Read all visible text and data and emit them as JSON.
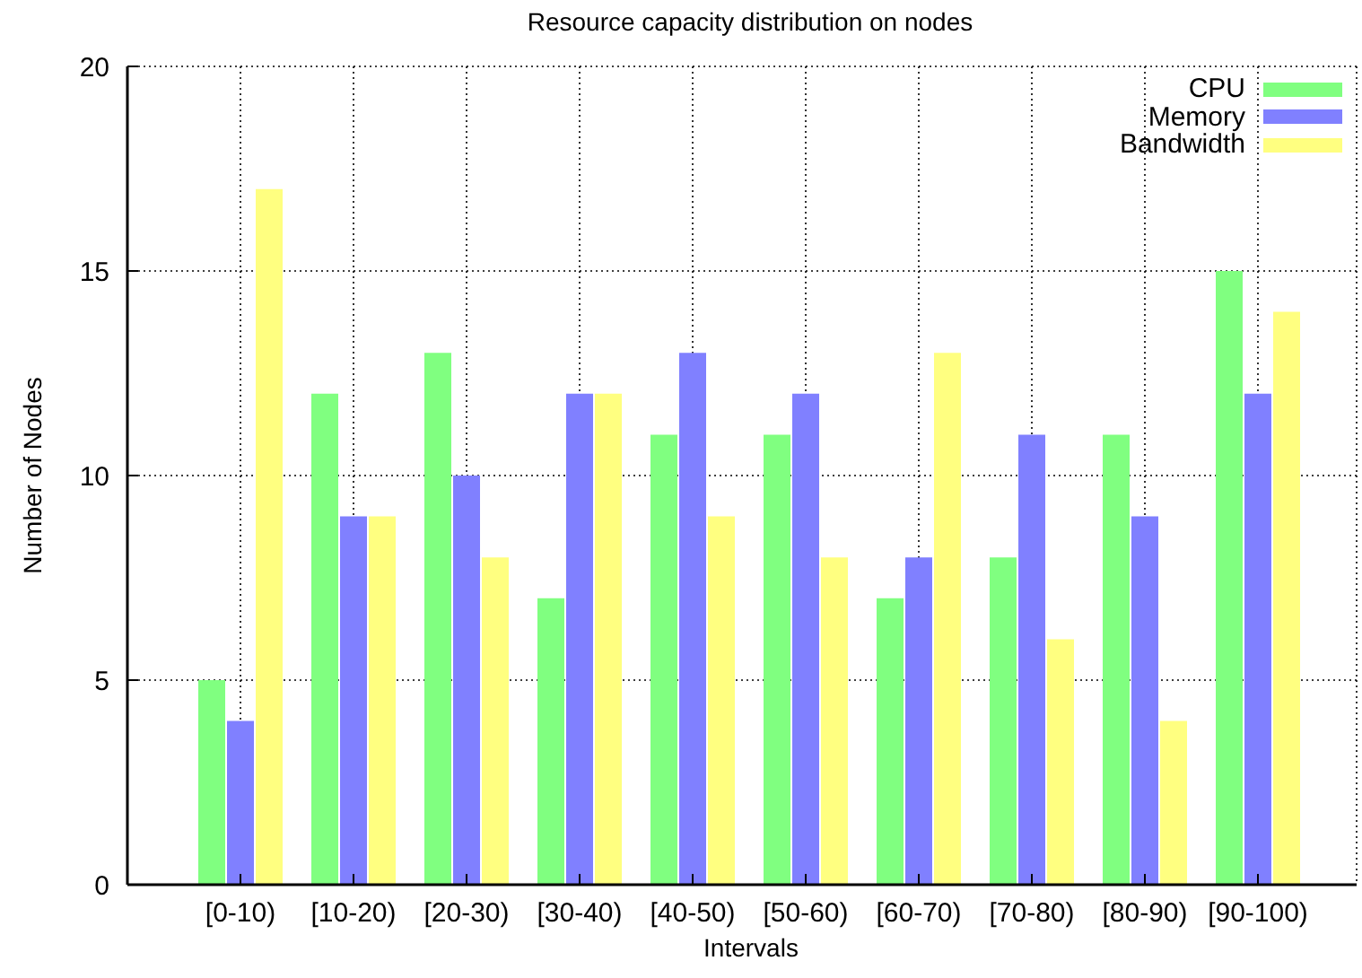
{
  "chart_data": {
    "type": "bar",
    "title": "Resource capacity distribution on nodes",
    "xlabel": "Intervals",
    "ylabel": "Number of Nodes",
    "categories": [
      "[0-10)",
      "[10-20)",
      "[20-30)",
      "[30-40)",
      "[40-50)",
      "[50-60)",
      "[60-70)",
      "[70-80)",
      "[80-90)",
      "[90-100)"
    ],
    "series": [
      {
        "name": "CPU",
        "color": "#80ff80",
        "values": [
          5,
          12,
          13,
          7,
          11,
          11,
          7,
          8,
          11,
          15
        ]
      },
      {
        "name": "Memory",
        "color": "#8080ff",
        "values": [
          4,
          9,
          10,
          12,
          13,
          12,
          8,
          11,
          9,
          12
        ]
      },
      {
        "name": "Bandwidth",
        "color": "#ffff80",
        "values": [
          17,
          9,
          8,
          12,
          9,
          8,
          13,
          6,
          4,
          14
        ]
      }
    ],
    "ylim": [
      0,
      20
    ],
    "yticks": [
      0,
      5,
      10,
      15,
      20
    ],
    "grid": true,
    "legend": "top right"
  }
}
